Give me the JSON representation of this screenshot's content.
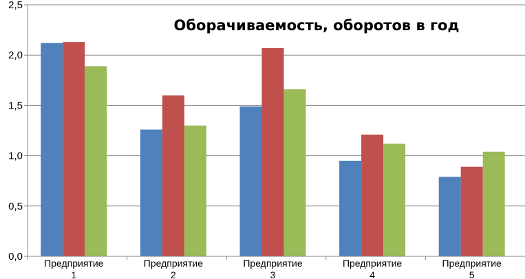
{
  "chart_data": {
    "type": "bar",
    "title": "Оборачиваемость, оборотов в год",
    "categories": [
      [
        "Предприятие",
        "1"
      ],
      [
        "Предприятие",
        "2"
      ],
      [
        "Предприятие",
        "3"
      ],
      [
        "Предприятие",
        "4"
      ],
      [
        "Предприятие",
        "5"
      ]
    ],
    "series": [
      {
        "color": "#4F81BD",
        "values": [
          2.12,
          1.26,
          1.49,
          0.95,
          0.79
        ]
      },
      {
        "color": "#C0504D",
        "values": [
          2.13,
          1.6,
          2.07,
          1.21,
          0.89
        ]
      },
      {
        "color": "#9BBB59",
        "values": [
          1.89,
          1.3,
          1.66,
          1.12,
          1.04
        ]
      }
    ],
    "y_ticks": [
      "0,0",
      "0,5",
      "1,0",
      "1,5",
      "2,0",
      "2,5"
    ],
    "ylim": [
      0,
      2.5
    ],
    "y_tick_step": 0.5,
    "grid": true,
    "legend": "none"
  }
}
